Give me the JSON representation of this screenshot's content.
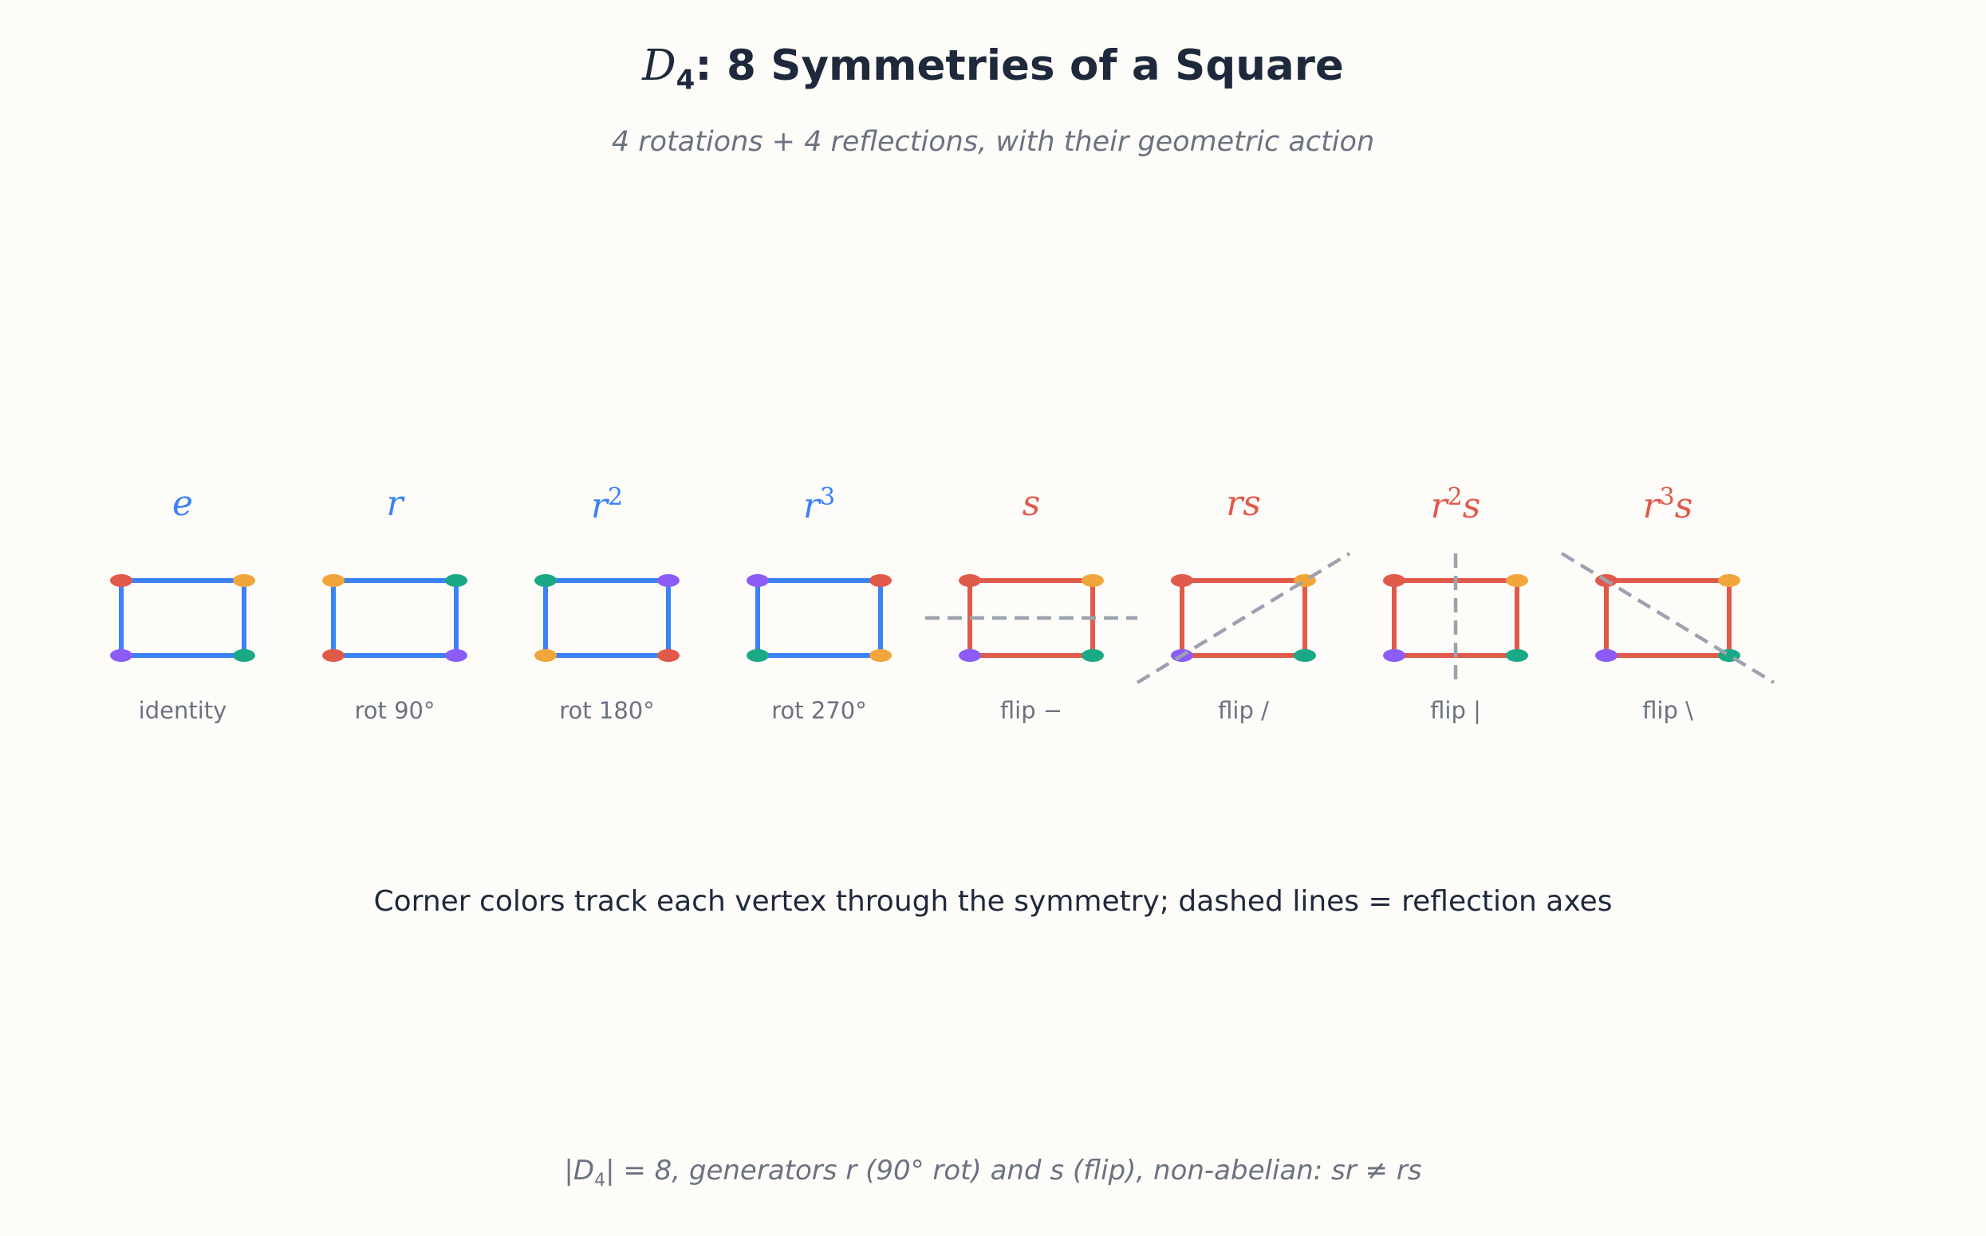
{
  "header": {
    "title_symbol": "D",
    "title_subscript": "4",
    "title_rest": ": 8 Symmetries of a Square",
    "subtitle": "4 rotations + 4 reflections, with their geometric action"
  },
  "colors": {
    "rotation": "#3b82f6",
    "reflection": "#e05a4a",
    "axis": "#9ca3af",
    "vertex_red": "#e05a4a",
    "vertex_orange": "#f0a63a",
    "vertex_green": "#1aa886",
    "vertex_purple": "#8b5cf6"
  },
  "symmetries": [
    {
      "base": "e",
      "sup": "",
      "tail": "",
      "caption": "identity",
      "kind": "rotation",
      "axis": "none",
      "corners": {
        "tl": "vertex_red",
        "tr": "vertex_orange",
        "br": "vertex_green",
        "bl": "vertex_purple"
      }
    },
    {
      "base": "r",
      "sup": "",
      "tail": "",
      "caption": "rot 90°",
      "kind": "rotation",
      "axis": "none",
      "corners": {
        "tl": "vertex_orange",
        "tr": "vertex_green",
        "br": "vertex_purple",
        "bl": "vertex_red"
      }
    },
    {
      "base": "r",
      "sup": "2",
      "tail": "",
      "caption": "rot 180°",
      "kind": "rotation",
      "axis": "none",
      "corners": {
        "tl": "vertex_green",
        "tr": "vertex_purple",
        "br": "vertex_red",
        "bl": "vertex_orange"
      }
    },
    {
      "base": "r",
      "sup": "3",
      "tail": "",
      "caption": "rot 270°",
      "kind": "rotation",
      "axis": "none",
      "corners": {
        "tl": "vertex_purple",
        "tr": "vertex_red",
        "br": "vertex_orange",
        "bl": "vertex_green"
      }
    },
    {
      "base": "s",
      "sup": "",
      "tail": "",
      "caption": "flip −",
      "kind": "reflection",
      "axis": "horizontal",
      "corners": {
        "tl": "vertex_red",
        "tr": "vertex_orange",
        "br": "vertex_green",
        "bl": "vertex_purple"
      }
    },
    {
      "base": "rs",
      "sup": "",
      "tail": "",
      "caption": "flip /",
      "kind": "reflection",
      "axis": "diagonal-up",
      "corners": {
        "tl": "vertex_red",
        "tr": "vertex_orange",
        "br": "vertex_green",
        "bl": "vertex_purple"
      }
    },
    {
      "base": "r",
      "sup": "2",
      "tail": "s",
      "caption": "flip |",
      "kind": "reflection",
      "axis": "vertical",
      "corners": {
        "tl": "vertex_red",
        "tr": "vertex_orange",
        "br": "vertex_green",
        "bl": "vertex_purple"
      }
    },
    {
      "base": "r",
      "sup": "3",
      "tail": "s",
      "caption": "flip \\",
      "kind": "reflection",
      "axis": "diagonal-down",
      "corners": {
        "tl": "vertex_red",
        "tr": "vertex_orange",
        "br": "vertex_green",
        "bl": "vertex_purple"
      }
    }
  ],
  "note": "Corner colors track each vertex through the symmetry; dashed lines = reflection axes",
  "footer": {
    "pre": "|D",
    "sub": "4",
    "post": "| = 8, generators r (90° rot) and s (flip), non-abelian: sr ≠ rs"
  }
}
